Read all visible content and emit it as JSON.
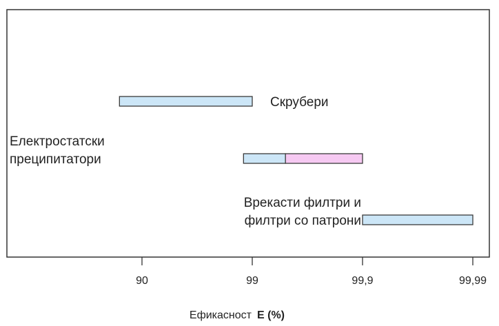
{
  "chart_data": {
    "type": "bar",
    "orientation": "horizontal",
    "x_scale": "log-complement",
    "xlabel": "Ефикасност",
    "xlabel_unit": "E (%)",
    "x_ticks": [
      "90",
      "99",
      "99,9",
      "99,99"
    ],
    "x_tick_values": [
      90,
      99,
      99.9,
      99.99
    ],
    "xlim": [
      70,
      99.99
    ],
    "grid": false,
    "legend": "none",
    "rows": [
      {
        "label_lines": [
          "Скрубери"
        ],
        "label_side": "right",
        "segments": [
          {
            "from": 84,
            "to": 99,
            "color": "#cce6f7"
          }
        ]
      },
      {
        "label_lines": [
          "Електростатски",
          "преципитатори"
        ],
        "label_side": "left",
        "segments": [
          {
            "from": 98.8,
            "to": 99.5,
            "color": "#cce6f7"
          },
          {
            "from": 99.5,
            "to": 99.9,
            "color": "#f6c9f2"
          }
        ]
      },
      {
        "label_lines": [
          "Врекасти филтри и",
          "филтри со патрони"
        ],
        "label_side": "left",
        "segments": [
          {
            "from": 99.9,
            "to": 99.99,
            "color": "#cce6f7"
          }
        ]
      }
    ]
  }
}
